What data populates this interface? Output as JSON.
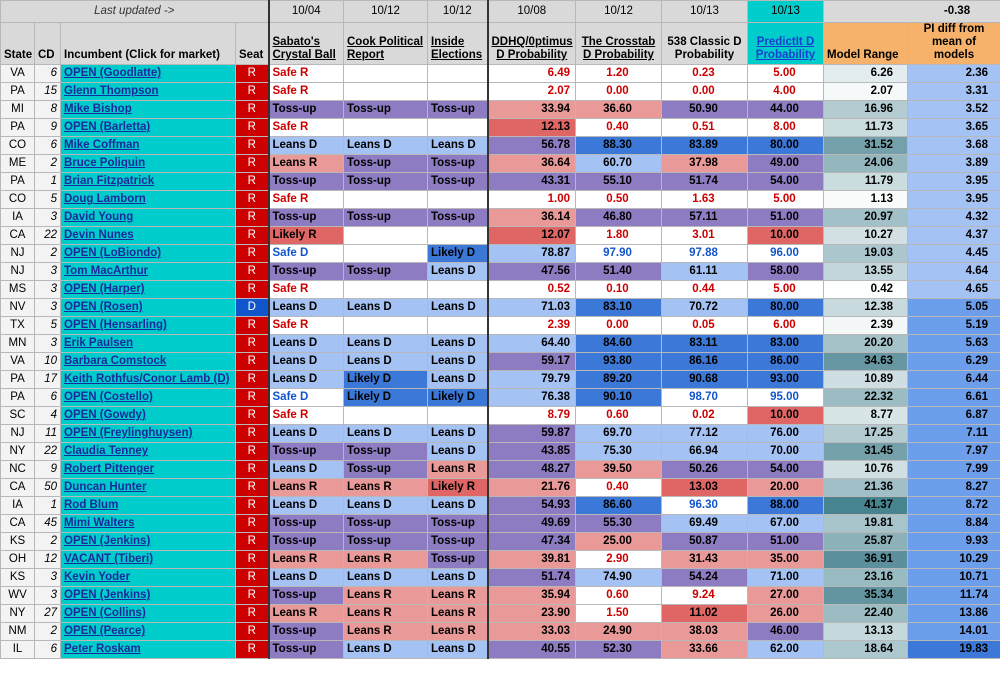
{
  "header_top": {
    "last_updated": "Last updated ->",
    "dates": [
      "10/04",
      "10/12",
      "10/12",
      "10/08",
      "10/12",
      "10/13",
      "10/13"
    ],
    "summary_value": "-0.38"
  },
  "columns": {
    "state": "State",
    "cd": "CD",
    "incumbent": "Incumbent (Click for market)",
    "seat": "Seat",
    "sabato": "Sabato's Crystal Ball",
    "cook": "Cook Political Report",
    "inside": "Inside Elections",
    "ddhq": "DDHQ/0ptimus D Probability",
    "crosstab": "The Crosstab D Probability",
    "fte": "538 Classic D Probability",
    "predictit": "PredictIt D Probability",
    "model_range": "Model Range",
    "pi_diff": "PI diff from mean of models"
  },
  "colors": {
    "seat_R": "#cc0000",
    "seat_D": "#1155cc",
    "incumbent_bg": "#00cccc",
    "header_bg": "#d9d9d9",
    "predictit_header": "#00cccc",
    "model_header": "#f6b26b"
  },
  "rows": [
    {
      "state": "VA",
      "cd": "6",
      "inc": "OPEN (Goodlatte)",
      "seat": "R",
      "sabato": "Safe R",
      "cook": "",
      "inside": "",
      "ddhq": "6.49",
      "crosstab": "1.20",
      "fte": "0.23",
      "pi": "5.00",
      "range": "6.26",
      "diff": "2.36"
    },
    {
      "state": "PA",
      "cd": "15",
      "inc": "Glenn Thompson",
      "seat": "R",
      "sabato": "Safe R",
      "cook": "",
      "inside": "",
      "ddhq": "2.07",
      "crosstab": "0.00",
      "fte": "0.00",
      "pi": "4.00",
      "range": "2.07",
      "diff": "3.31"
    },
    {
      "state": "MI",
      "cd": "8",
      "inc": "Mike Bishop",
      "seat": "R",
      "sabato": "Toss-up",
      "cook": "Toss-up",
      "inside": "Toss-up",
      "ddhq": "33.94",
      "crosstab": "36.60",
      "fte": "50.90",
      "pi": "44.00",
      "range": "16.96",
      "diff": "3.52"
    },
    {
      "state": "PA",
      "cd": "9",
      "inc": "OPEN (Barletta)",
      "seat": "R",
      "sabato": "Safe R",
      "cook": "",
      "inside": "",
      "ddhq": "12.13",
      "crosstab": "0.40",
      "fte": "0.51",
      "pi": "8.00",
      "range": "11.73",
      "diff": "3.65"
    },
    {
      "state": "CO",
      "cd": "6",
      "inc": "Mike Coffman",
      "seat": "R",
      "sabato": "Leans D",
      "cook": "Leans D",
      "inside": "Leans D",
      "ddhq": "56.78",
      "crosstab": "88.30",
      "fte": "83.89",
      "pi": "80.00",
      "range": "31.52",
      "diff": "3.68"
    },
    {
      "state": "ME",
      "cd": "2",
      "inc": "Bruce Poliquin",
      "seat": "R",
      "sabato": "Leans R",
      "cook": "Toss-up",
      "inside": "Toss-up",
      "ddhq": "36.64",
      "crosstab": "60.70",
      "fte": "37.98",
      "pi": "49.00",
      "range": "24.06",
      "diff": "3.89"
    },
    {
      "state": "PA",
      "cd": "1",
      "inc": "Brian Fitzpatrick",
      "seat": "R",
      "sabato": "Toss-up",
      "cook": "Toss-up",
      "inside": "Toss-up",
      "ddhq": "43.31",
      "crosstab": "55.10",
      "fte": "51.74",
      "pi": "54.00",
      "range": "11.79",
      "diff": "3.95"
    },
    {
      "state": "CO",
      "cd": "5",
      "inc": "Doug Lamborn",
      "seat": "R",
      "sabato": "Safe R",
      "cook": "",
      "inside": "",
      "ddhq": "1.00",
      "crosstab": "0.50",
      "fte": "1.63",
      "pi": "5.00",
      "range": "1.13",
      "diff": "3.95"
    },
    {
      "state": "IA",
      "cd": "3",
      "inc": "David Young",
      "seat": "R",
      "sabato": "Toss-up",
      "cook": "Toss-up",
      "inside": "Toss-up",
      "ddhq": "36.14",
      "crosstab": "46.80",
      "fte": "57.11",
      "pi": "51.00",
      "range": "20.97",
      "diff": "4.32"
    },
    {
      "state": "CA",
      "cd": "22",
      "inc": "Devin Nunes",
      "seat": "R",
      "sabato": "Likely R",
      "cook": "",
      "inside": "",
      "ddhq": "12.07",
      "crosstab": "1.80",
      "fte": "3.01",
      "pi": "10.00",
      "range": "10.27",
      "diff": "4.37"
    },
    {
      "state": "NJ",
      "cd": "2",
      "inc": "OPEN (LoBiondo)",
      "seat": "R",
      "sabato": "Safe D",
      "cook": "",
      "inside": "Likely D",
      "ddhq": "78.87",
      "crosstab": "97.90",
      "fte": "97.88",
      "pi": "96.00",
      "range": "19.03",
      "diff": "4.45"
    },
    {
      "state": "NJ",
      "cd": "3",
      "inc": "Tom MacArthur",
      "seat": "R",
      "sabato": "Toss-up",
      "cook": "Toss-up",
      "inside": "Leans D",
      "ddhq": "47.56",
      "crosstab": "51.40",
      "fte": "61.11",
      "pi": "58.00",
      "range": "13.55",
      "diff": "4.64"
    },
    {
      "state": "MS",
      "cd": "3",
      "inc": "OPEN (Harper)",
      "seat": "R",
      "sabato": "Safe R",
      "cook": "",
      "inside": "",
      "ddhq": "0.52",
      "crosstab": "0.10",
      "fte": "0.44",
      "pi": "5.00",
      "range": "0.42",
      "diff": "4.65"
    },
    {
      "state": "NV",
      "cd": "3",
      "inc": "OPEN (Rosen)",
      "seat": "D",
      "sabato": "Leans D",
      "cook": "Leans D",
      "inside": "Leans D",
      "ddhq": "71.03",
      "crosstab": "83.10",
      "fte": "70.72",
      "pi": "80.00",
      "range": "12.38",
      "diff": "5.05"
    },
    {
      "state": "TX",
      "cd": "5",
      "inc": "OPEN (Hensarling)",
      "seat": "R",
      "sabato": "Safe R",
      "cook": "",
      "inside": "",
      "ddhq": "2.39",
      "crosstab": "0.00",
      "fte": "0.05",
      "pi": "6.00",
      "range": "2.39",
      "diff": "5.19"
    },
    {
      "state": "MN",
      "cd": "3",
      "inc": "Erik Paulsen",
      "seat": "R",
      "sabato": "Leans D",
      "cook": "Leans D",
      "inside": "Leans D",
      "ddhq": "64.40",
      "crosstab": "84.60",
      "fte": "83.11",
      "pi": "83.00",
      "range": "20.20",
      "diff": "5.63"
    },
    {
      "state": "VA",
      "cd": "10",
      "inc": "Barbara Comstock",
      "seat": "R",
      "sabato": "Leans D",
      "cook": "Leans D",
      "inside": "Leans D",
      "ddhq": "59.17",
      "crosstab": "93.80",
      "fte": "86.16",
      "pi": "86.00",
      "range": "34.63",
      "diff": "6.29"
    },
    {
      "state": "PA",
      "cd": "17",
      "inc": "Keith Rothfus/Conor Lamb (D)",
      "seat": "R",
      "sabato": "Leans D",
      "cook": "Likely D",
      "inside": "Leans D",
      "ddhq": "79.79",
      "crosstab": "89.20",
      "fte": "90.68",
      "pi": "93.00",
      "range": "10.89",
      "diff": "6.44"
    },
    {
      "state": "PA",
      "cd": "6",
      "inc": "OPEN (Costello)",
      "seat": "R",
      "sabato": "Safe D",
      "cook": "Likely D",
      "inside": "Likely D",
      "ddhq": "76.38",
      "crosstab": "90.10",
      "fte": "98.70",
      "pi": "95.00",
      "range": "22.32",
      "diff": "6.61"
    },
    {
      "state": "SC",
      "cd": "4",
      "inc": "OPEN (Gowdy)",
      "seat": "R",
      "sabato": "Safe R",
      "cook": "",
      "inside": "",
      "ddhq": "8.79",
      "crosstab": "0.60",
      "fte": "0.02",
      "pi": "10.00",
      "range": "8.77",
      "diff": "6.87"
    },
    {
      "state": "NJ",
      "cd": "11",
      "inc": "OPEN (Freylinghuysen)",
      "seat": "R",
      "sabato": "Leans D",
      "cook": "Leans D",
      "inside": "Leans D",
      "ddhq": "59.87",
      "crosstab": "69.70",
      "fte": "77.12",
      "pi": "76.00",
      "range": "17.25",
      "diff": "7.11"
    },
    {
      "state": "NY",
      "cd": "22",
      "inc": "Claudia Tenney",
      "seat": "R",
      "sabato": "Toss-up",
      "cook": "Toss-up",
      "inside": "Leans D",
      "ddhq": "43.85",
      "crosstab": "75.30",
      "fte": "66.94",
      "pi": "70.00",
      "range": "31.45",
      "diff": "7.97"
    },
    {
      "state": "NC",
      "cd": "9",
      "inc": "Robert Pittenger",
      "seat": "R",
      "sabato": "Leans D",
      "cook": "Toss-up",
      "inside": "Leans R",
      "ddhq": "48.27",
      "crosstab": "39.50",
      "fte": "50.26",
      "pi": "54.00",
      "range": "10.76",
      "diff": "7.99"
    },
    {
      "state": "CA",
      "cd": "50",
      "inc": "Duncan Hunter",
      "seat": "R",
      "sabato": "Leans R",
      "cook": "Leans R",
      "inside": "Likely R",
      "ddhq": "21.76",
      "crosstab": "0.40",
      "fte": "13.03",
      "pi": "20.00",
      "range": "21.36",
      "diff": "8.27"
    },
    {
      "state": "IA",
      "cd": "1",
      "inc": "Rod Blum",
      "seat": "R",
      "sabato": "Leans D",
      "cook": "Leans D",
      "inside": "Leans D",
      "ddhq": "54.93",
      "crosstab": "86.60",
      "fte": "96.30",
      "pi": "88.00",
      "range": "41.37",
      "diff": "8.72"
    },
    {
      "state": "CA",
      "cd": "45",
      "inc": "Mimi Walters",
      "seat": "R",
      "sabato": "Toss-up",
      "cook": "Toss-up",
      "inside": "Toss-up",
      "ddhq": "49.69",
      "crosstab": "55.30",
      "fte": "69.49",
      "pi": "67.00",
      "range": "19.81",
      "diff": "8.84"
    },
    {
      "state": "KS",
      "cd": "2",
      "inc": "OPEN (Jenkins)",
      "seat": "R",
      "sabato": "Toss-up",
      "cook": "Toss-up",
      "inside": "Toss-up",
      "ddhq": "47.34",
      "crosstab": "25.00",
      "fte": "50.87",
      "pi": "51.00",
      "range": "25.87",
      "diff": "9.93"
    },
    {
      "state": "OH",
      "cd": "12",
      "inc": "VACANT (Tiberi)",
      "seat": "R",
      "sabato": "Leans R",
      "cook": "Leans R",
      "inside": "Toss-up",
      "ddhq": "39.81",
      "crosstab": "2.90",
      "fte": "31.43",
      "pi": "35.00",
      "range": "36.91",
      "diff": "10.29"
    },
    {
      "state": "KS",
      "cd": "3",
      "inc": "Kevin Yoder",
      "seat": "R",
      "sabato": "Leans D",
      "cook": "Leans D",
      "inside": "Leans D",
      "ddhq": "51.74",
      "crosstab": "74.90",
      "fte": "54.24",
      "pi": "71.00",
      "range": "23.16",
      "diff": "10.71"
    },
    {
      "state": "WV",
      "cd": "3",
      "inc": "OPEN (Jenkins)",
      "seat": "R",
      "sabato": "Toss-up",
      "cook": "Leans R",
      "inside": "Leans R",
      "ddhq": "35.94",
      "crosstab": "0.60",
      "fte": "9.24",
      "pi": "27.00",
      "range": "35.34",
      "diff": "11.74"
    },
    {
      "state": "NY",
      "cd": "27",
      "inc": "OPEN (Collins)",
      "seat": "R",
      "sabato": "Leans R",
      "cook": "Leans R",
      "inside": "Leans R",
      "ddhq": "23.90",
      "crosstab": "1.50",
      "fte": "11.02",
      "pi": "26.00",
      "range": "22.40",
      "diff": "13.86"
    },
    {
      "state": "NM",
      "cd": "2",
      "inc": "OPEN (Pearce)",
      "seat": "R",
      "sabato": "Toss-up",
      "cook": "Leans R",
      "inside": "Leans R",
      "ddhq": "33.03",
      "crosstab": "24.90",
      "fte": "38.03",
      "pi": "46.00",
      "range": "13.13",
      "diff": "14.01"
    },
    {
      "state": "IL",
      "cd": "6",
      "inc": "Peter Roskam",
      "seat": "R",
      "sabato": "Toss-up",
      "cook": "Leans D",
      "inside": "Leans D",
      "ddhq": "40.55",
      "crosstab": "52.30",
      "fte": "33.66",
      "pi": "62.00",
      "range": "18.64",
      "diff": "19.83"
    }
  ]
}
